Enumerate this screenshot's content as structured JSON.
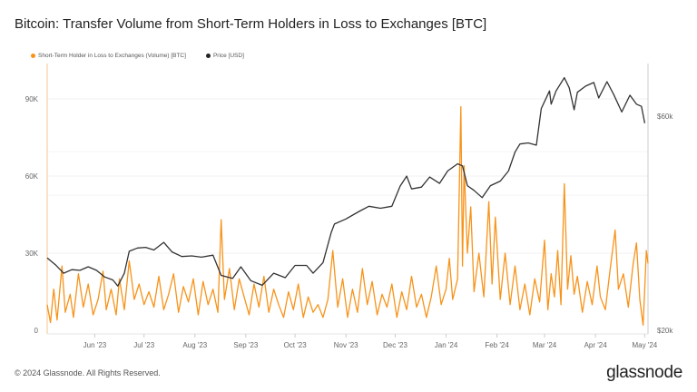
{
  "title": "Bitcoin: Transfer Volume from Short-Term Holders in Loss to Exchanges [BTC]",
  "footer": "© 2024 Glassnode. All Rights Reserved.",
  "logo": "glassnode",
  "chart_data": {
    "type": "line",
    "title": "Bitcoin: Transfer Volume from Short-Term Holders in Loss to Exchanges [BTC]",
    "legend_placement": "top-left",
    "grid": true,
    "x_range": [
      "2023-05-03",
      "2024-05-03"
    ],
    "x_ticks": [
      {
        "date": "2023-06-01",
        "label": "Jun '23"
      },
      {
        "date": "2023-07-01",
        "label": "Jul '23"
      },
      {
        "date": "2023-08-01",
        "label": "Aug '23"
      },
      {
        "date": "2023-09-01",
        "label": "Sep '23"
      },
      {
        "date": "2023-10-01",
        "label": "Oct '23"
      },
      {
        "date": "2023-11-01",
        "label": "Nov '23"
      },
      {
        "date": "2023-12-01",
        "label": "Dec '23"
      },
      {
        "date": "2024-01-01",
        "label": "Jan '24"
      },
      {
        "date": "2024-02-01",
        "label": "Feb '24"
      },
      {
        "date": "2024-03-01",
        "label": "Mar '24"
      },
      {
        "date": "2024-04-01",
        "label": "Apr '24"
      },
      {
        "date": "2024-05-01",
        "label": "May '24"
      }
    ],
    "y_left": {
      "range": [
        0,
        105000
      ],
      "ticks": [
        {
          "v": 0,
          "label": "0"
        },
        {
          "v": 30000,
          "label": "30K"
        },
        {
          "v": 60000,
          "label": "60K"
        },
        {
          "v": 90000,
          "label": "90K"
        }
      ]
    },
    "y_right": {
      "scale": "log",
      "range": [
        20000,
        80000
      ],
      "ticks": [
        {
          "v": 20000,
          "label": "$20k"
        },
        {
          "v": 60000,
          "label": "$60k"
        }
      ]
    },
    "series": [
      {
        "name": "Short-Term Holder in Loss to Exchanges (Volume) [BTC]",
        "axis": "left",
        "color": "#f7931a",
        "points": [
          [
            "2023-05-03",
            10000
          ],
          [
            "2023-05-05",
            3000
          ],
          [
            "2023-05-07",
            16000
          ],
          [
            "2023-05-09",
            4000
          ],
          [
            "2023-05-12",
            25000
          ],
          [
            "2023-05-14",
            7000
          ],
          [
            "2023-05-17",
            14000
          ],
          [
            "2023-05-19",
            5000
          ],
          [
            "2023-05-22",
            22000
          ],
          [
            "2023-05-25",
            9000
          ],
          [
            "2023-05-28",
            18000
          ],
          [
            "2023-05-31",
            6000
          ],
          [
            "2023-06-03",
            12000
          ],
          [
            "2023-06-06",
            23000
          ],
          [
            "2023-06-08",
            8000
          ],
          [
            "2023-06-11",
            16000
          ],
          [
            "2023-06-14",
            6000
          ],
          [
            "2023-06-16",
            20000
          ],
          [
            "2023-06-19",
            8000
          ],
          [
            "2023-06-22",
            27000
          ],
          [
            "2023-06-25",
            12000
          ],
          [
            "2023-06-28",
            18000
          ],
          [
            "2023-07-01",
            10000
          ],
          [
            "2023-07-04",
            15000
          ],
          [
            "2023-07-07",
            9000
          ],
          [
            "2023-07-10",
            21000
          ],
          [
            "2023-07-13",
            8000
          ],
          [
            "2023-07-16",
            14000
          ],
          [
            "2023-07-19",
            22000
          ],
          [
            "2023-07-22",
            7000
          ],
          [
            "2023-07-25",
            17000
          ],
          [
            "2023-07-28",
            11000
          ],
          [
            "2023-07-31",
            20000
          ],
          [
            "2023-08-03",
            6000
          ],
          [
            "2023-08-06",
            19000
          ],
          [
            "2023-08-09",
            10000
          ],
          [
            "2023-08-12",
            16000
          ],
          [
            "2023-08-15",
            7000
          ],
          [
            "2023-08-17",
            43000
          ],
          [
            "2023-08-19",
            12000
          ],
          [
            "2023-08-22",
            24000
          ],
          [
            "2023-08-25",
            8000
          ],
          [
            "2023-08-28",
            20000
          ],
          [
            "2023-08-31",
            13000
          ],
          [
            "2023-09-03",
            6000
          ],
          [
            "2023-09-06",
            18000
          ],
          [
            "2023-09-09",
            9000
          ],
          [
            "2023-09-12",
            21000
          ],
          [
            "2023-09-15",
            7000
          ],
          [
            "2023-09-18",
            16000
          ],
          [
            "2023-09-21",
            10000
          ],
          [
            "2023-09-24",
            5000
          ],
          [
            "2023-09-27",
            15000
          ],
          [
            "2023-09-30",
            8000
          ],
          [
            "2023-10-03",
            18000
          ],
          [
            "2023-10-06",
            5000
          ],
          [
            "2023-10-09",
            13000
          ],
          [
            "2023-10-12",
            7000
          ],
          [
            "2023-10-15",
            10000
          ],
          [
            "2023-10-18",
            5000
          ],
          [
            "2023-10-21",
            12000
          ],
          [
            "2023-10-24",
            31000
          ],
          [
            "2023-10-27",
            9000
          ],
          [
            "2023-10-30",
            20000
          ],
          [
            "2023-11-02",
            5000
          ],
          [
            "2023-11-05",
            16000
          ],
          [
            "2023-11-08",
            7000
          ],
          [
            "2023-11-11",
            24000
          ],
          [
            "2023-11-14",
            10000
          ],
          [
            "2023-11-17",
            19000
          ],
          [
            "2023-11-20",
            6000
          ],
          [
            "2023-11-23",
            14000
          ],
          [
            "2023-11-26",
            9000
          ],
          [
            "2023-11-29",
            18000
          ],
          [
            "2023-12-02",
            5000
          ],
          [
            "2023-12-05",
            15000
          ],
          [
            "2023-12-08",
            8000
          ],
          [
            "2023-12-11",
            21000
          ],
          [
            "2023-12-14",
            9000
          ],
          [
            "2023-12-17",
            14000
          ],
          [
            "2023-12-20",
            5000
          ],
          [
            "2023-12-23",
            13000
          ],
          [
            "2023-12-26",
            25000
          ],
          [
            "2023-12-29",
            10000
          ],
          [
            "2024-01-01",
            16000
          ],
          [
            "2024-01-03",
            28000
          ],
          [
            "2024-01-05",
            12000
          ],
          [
            "2024-01-08",
            20000
          ],
          [
            "2024-01-10",
            87000
          ],
          [
            "2024-01-11",
            25000
          ],
          [
            "2024-01-12",
            64000
          ],
          [
            "2024-01-14",
            30000
          ],
          [
            "2024-01-16",
            48000
          ],
          [
            "2024-01-18",
            15000
          ],
          [
            "2024-01-21",
            30000
          ],
          [
            "2024-01-24",
            13000
          ],
          [
            "2024-01-27",
            50000
          ],
          [
            "2024-01-29",
            18000
          ],
          [
            "2024-01-31",
            44000
          ],
          [
            "2024-02-03",
            12000
          ],
          [
            "2024-02-06",
            30000
          ],
          [
            "2024-02-09",
            10000
          ],
          [
            "2024-02-12",
            25000
          ],
          [
            "2024-02-15",
            8000
          ],
          [
            "2024-02-18",
            18000
          ],
          [
            "2024-02-21",
            6000
          ],
          [
            "2024-02-24",
            20000
          ],
          [
            "2024-02-27",
            11000
          ],
          [
            "2024-03-01",
            35000
          ],
          [
            "2024-03-03",
            8000
          ],
          [
            "2024-03-05",
            22000
          ],
          [
            "2024-03-07",
            13000
          ],
          [
            "2024-03-09",
            31000
          ],
          [
            "2024-03-11",
            10000
          ],
          [
            "2024-03-13",
            57000
          ],
          [
            "2024-03-15",
            16000
          ],
          [
            "2024-03-17",
            29000
          ],
          [
            "2024-03-19",
            14000
          ],
          [
            "2024-03-21",
            21000
          ],
          [
            "2024-03-24",
            7000
          ],
          [
            "2024-03-27",
            19000
          ],
          [
            "2024-03-30",
            10000
          ],
          [
            "2024-04-02",
            25000
          ],
          [
            "2024-04-04",
            13000
          ],
          [
            "2024-04-07",
            8000
          ],
          [
            "2024-04-10",
            24000
          ],
          [
            "2024-04-13",
            39000
          ],
          [
            "2024-04-15",
            16000
          ],
          [
            "2024-04-18",
            22000
          ],
          [
            "2024-04-21",
            9000
          ],
          [
            "2024-04-24",
            26000
          ],
          [
            "2024-04-26",
            34000
          ],
          [
            "2024-04-28",
            12000
          ],
          [
            "2024-04-30",
            2000
          ],
          [
            "2024-05-01",
            16000
          ],
          [
            "2024-05-02",
            31000
          ],
          [
            "2024-05-03",
            26000
          ]
        ]
      },
      {
        "name": "Price [USD]",
        "axis": "right",
        "color": "#333333",
        "points": [
          [
            "2023-05-03",
            29000
          ],
          [
            "2023-05-08",
            28000
          ],
          [
            "2023-05-13",
            26800
          ],
          [
            "2023-05-18",
            27300
          ],
          [
            "2023-05-23",
            27200
          ],
          [
            "2023-05-28",
            27700
          ],
          [
            "2023-06-02",
            27200
          ],
          [
            "2023-06-07",
            26300
          ],
          [
            "2023-06-12",
            25900
          ],
          [
            "2023-06-15",
            25100
          ],
          [
            "2023-06-19",
            26800
          ],
          [
            "2023-06-22",
            30000
          ],
          [
            "2023-06-27",
            30500
          ],
          [
            "2023-07-02",
            30600
          ],
          [
            "2023-07-07",
            30200
          ],
          [
            "2023-07-13",
            31400
          ],
          [
            "2023-07-18",
            29900
          ],
          [
            "2023-07-24",
            29200
          ],
          [
            "2023-07-30",
            29300
          ],
          [
            "2023-08-05",
            29100
          ],
          [
            "2023-08-12",
            29400
          ],
          [
            "2023-08-17",
            26500
          ],
          [
            "2023-08-24",
            26100
          ],
          [
            "2023-08-29",
            27700
          ],
          [
            "2023-09-04",
            25800
          ],
          [
            "2023-09-11",
            25200
          ],
          [
            "2023-09-18",
            26800
          ],
          [
            "2023-09-25",
            26200
          ],
          [
            "2023-10-01",
            27900
          ],
          [
            "2023-10-08",
            27900
          ],
          [
            "2023-10-12",
            26800
          ],
          [
            "2023-10-18",
            28300
          ],
          [
            "2023-10-23",
            33000
          ],
          [
            "2023-10-25",
            34500
          ],
          [
            "2023-11-01",
            35400
          ],
          [
            "2023-11-09",
            36800
          ],
          [
            "2023-11-15",
            37800
          ],
          [
            "2023-11-22",
            37400
          ],
          [
            "2023-11-29",
            37800
          ],
          [
            "2023-12-04",
            41900
          ],
          [
            "2023-12-08",
            44100
          ],
          [
            "2023-12-11",
            41300
          ],
          [
            "2023-12-17",
            41700
          ],
          [
            "2023-12-22",
            43900
          ],
          [
            "2023-12-28",
            42500
          ],
          [
            "2024-01-02",
            45300
          ],
          [
            "2024-01-08",
            47000
          ],
          [
            "2024-01-11",
            46500
          ],
          [
            "2024-01-14",
            42000
          ],
          [
            "2024-01-18",
            41000
          ],
          [
            "2024-01-23",
            39500
          ],
          [
            "2024-01-28",
            42000
          ],
          [
            "2024-02-03",
            43000
          ],
          [
            "2024-02-08",
            45300
          ],
          [
            "2024-02-12",
            49900
          ],
          [
            "2024-02-15",
            52000
          ],
          [
            "2024-02-20",
            52300
          ],
          [
            "2024-02-25",
            51700
          ],
          [
            "2024-02-28",
            62400
          ],
          [
            "2024-03-04",
            68300
          ],
          [
            "2024-03-05",
            63800
          ],
          [
            "2024-03-08",
            68300
          ],
          [
            "2024-03-13",
            73100
          ],
          [
            "2024-03-16",
            69400
          ],
          [
            "2024-03-19",
            62000
          ],
          [
            "2024-03-21",
            67800
          ],
          [
            "2024-03-26",
            70000
          ],
          [
            "2024-03-31",
            71300
          ],
          [
            "2024-04-03",
            65900
          ],
          [
            "2024-04-08",
            71600
          ],
          [
            "2024-04-12",
            67200
          ],
          [
            "2024-04-17",
            61300
          ],
          [
            "2024-04-22",
            66800
          ],
          [
            "2024-04-26",
            63800
          ],
          [
            "2024-04-29",
            63100
          ],
          [
            "2024-05-01",
            57900
          ]
        ]
      }
    ]
  }
}
